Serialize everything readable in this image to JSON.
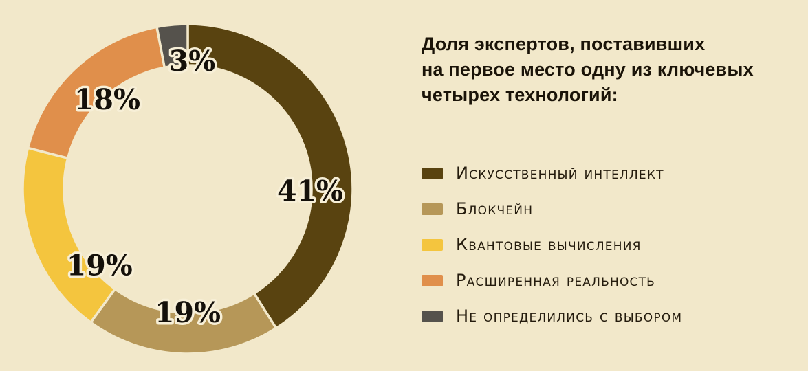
{
  "background": "#f2e8ca",
  "title": {
    "lines": [
      "Доля экспертов, поставивших",
      "на первое место одну из ключевых",
      "четырех технологий:"
    ]
  },
  "chart_data": {
    "type": "pie",
    "donut": true,
    "title": "Доля экспертов, поставивших на первое место одну из ключевых четырех технологий:",
    "start_angle_deg": 0,
    "direction": "clockwise",
    "legend_position": "right",
    "slices": [
      {
        "label": "Искусственный интеллект",
        "value": 41,
        "pct_text": "41%",
        "color": "#594310",
        "pct_label_angle": 91,
        "pct_label_radius": 178
      },
      {
        "label": "Блокчейн",
        "value": 19,
        "pct_text": "19%",
        "color": "#b69758",
        "pct_label_angle": 180,
        "pct_label_radius": 180
      },
      {
        "label": "Квантовые вычисления",
        "value": 19,
        "pct_text": "19%",
        "color": "#f4c53e",
        "pct_label_angle": 229,
        "pct_label_radius": 170
      },
      {
        "label": "Расширенная реальность",
        "value": 18,
        "pct_text": "18%",
        "color": "#e08f4b",
        "pct_label_angle": 318,
        "pct_label_radius": 175
      },
      {
        "label": "Не определились с выбором",
        "value": 3,
        "pct_text": "3%",
        "color": "#55524c",
        "pct_label_angle": 2,
        "pct_label_radius": 186
      }
    ]
  }
}
